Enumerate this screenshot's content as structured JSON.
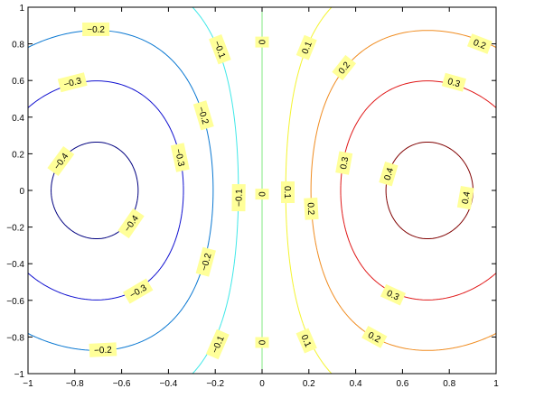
{
  "chart_data": {
    "type": "contour",
    "function": "x * exp(-x^2 - y^2)",
    "xlim": [
      -1,
      1
    ],
    "ylim": [
      -1,
      1
    ],
    "x_ticks": [
      -1,
      -0.8,
      -0.6,
      -0.4,
      -0.2,
      0,
      0.2,
      0.4,
      0.6,
      0.8,
      1
    ],
    "y_ticks": [
      -1,
      -0.8,
      -0.6,
      -0.4,
      -0.2,
      0,
      0.2,
      0.4,
      0.6,
      0.8,
      1
    ],
    "x_tick_labels": [
      "−1",
      "−0.8",
      "−0.6",
      "−0.4",
      "−0.2",
      "0",
      "0.2",
      "0.4",
      "0.6",
      "0.8",
      "1"
    ],
    "y_tick_labels": [
      "−1",
      "−0.8",
      "−0.6",
      "−0.4",
      "−0.2",
      "0",
      "0.2",
      "0.4",
      "0.6",
      "0.8",
      "1"
    ],
    "grid": false,
    "levels": [
      {
        "value": -0.4,
        "color": "#000080"
      },
      {
        "value": -0.3,
        "color": "#1010d0"
      },
      {
        "value": -0.2,
        "color": "#0a78d2"
      },
      {
        "value": -0.1,
        "color": "#40e8e8"
      },
      {
        "value": 0,
        "color": "#80e880"
      },
      {
        "value": 0.1,
        "color": "#f4f430"
      },
      {
        "value": 0.2,
        "color": "#f08c20"
      },
      {
        "value": 0.3,
        "color": "#e01818"
      },
      {
        "value": 0.4,
        "color": "#800000"
      }
    ],
    "contour_labels": [
      {
        "text": "−0.4",
        "level": -0.4,
        "x": -0.86,
        "y": 0.16
      },
      {
        "text": "−0.4",
        "level": -0.4,
        "x": -0.56,
        "y": -0.18
      },
      {
        "text": "−0.3",
        "level": -0.3,
        "x": -0.81,
        "y": 0.59
      },
      {
        "text": "−0.3",
        "level": -0.3,
        "x": -0.35,
        "y": 0.18
      },
      {
        "text": "−0.3",
        "level": -0.3,
        "x": -0.53,
        "y": -0.55
      },
      {
        "text": "−0.2",
        "level": -0.2,
        "x": -0.71,
        "y": 0.88
      },
      {
        "text": "−0.2",
        "level": -0.2,
        "x": -0.25,
        "y": 0.41
      },
      {
        "text": "−0.2",
        "level": -0.2,
        "x": -0.24,
        "y": -0.39
      },
      {
        "text": "−0.2",
        "level": -0.2,
        "x": -0.68,
        "y": -0.87
      },
      {
        "text": "−0.1",
        "level": -0.1,
        "x": -0.18,
        "y": 0.77
      },
      {
        "text": "−0.1",
        "level": -0.1,
        "x": -0.1,
        "y": -0.04
      },
      {
        "text": "−0.1",
        "level": -0.1,
        "x": -0.19,
        "y": -0.84
      },
      {
        "text": "0",
        "level": 0,
        "x": 0.0,
        "y": 0.81
      },
      {
        "text": "0",
        "level": 0,
        "x": 0.0,
        "y": -0.02
      },
      {
        "text": "0",
        "level": 0,
        "x": 0.0,
        "y": -0.83
      },
      {
        "text": "0.1",
        "level": 0.1,
        "x": 0.19,
        "y": 0.78
      },
      {
        "text": "0.1",
        "level": 0.1,
        "x": 0.11,
        "y": -0.01
      },
      {
        "text": "0.1",
        "level": 0.1,
        "x": 0.19,
        "y": -0.82
      },
      {
        "text": "0.2",
        "level": 0.2,
        "x": 0.35,
        "y": 0.67
      },
      {
        "text": "0.2",
        "level": 0.2,
        "x": 0.21,
        "y": -0.1
      },
      {
        "text": "0.2",
        "level": 0.2,
        "x": 0.48,
        "y": -0.8
      },
      {
        "text": "0.2",
        "level": 0.2,
        "x": 0.93,
        "y": 0.8
      },
      {
        "text": "0.3",
        "level": 0.3,
        "x": 0.82,
        "y": 0.59
      },
      {
        "text": "0.3",
        "level": 0.3,
        "x": 0.35,
        "y": 0.15
      },
      {
        "text": "0.3",
        "level": 0.3,
        "x": 0.56,
        "y": -0.57
      },
      {
        "text": "0.4",
        "level": 0.4,
        "x": 0.54,
        "y": 0.09
      },
      {
        "text": "0.4",
        "level": 0.4,
        "x": 0.87,
        "y": -0.04
      }
    ],
    "title": "",
    "xlabel": "",
    "ylabel": "",
    "label_box_color": "#ffff99"
  }
}
